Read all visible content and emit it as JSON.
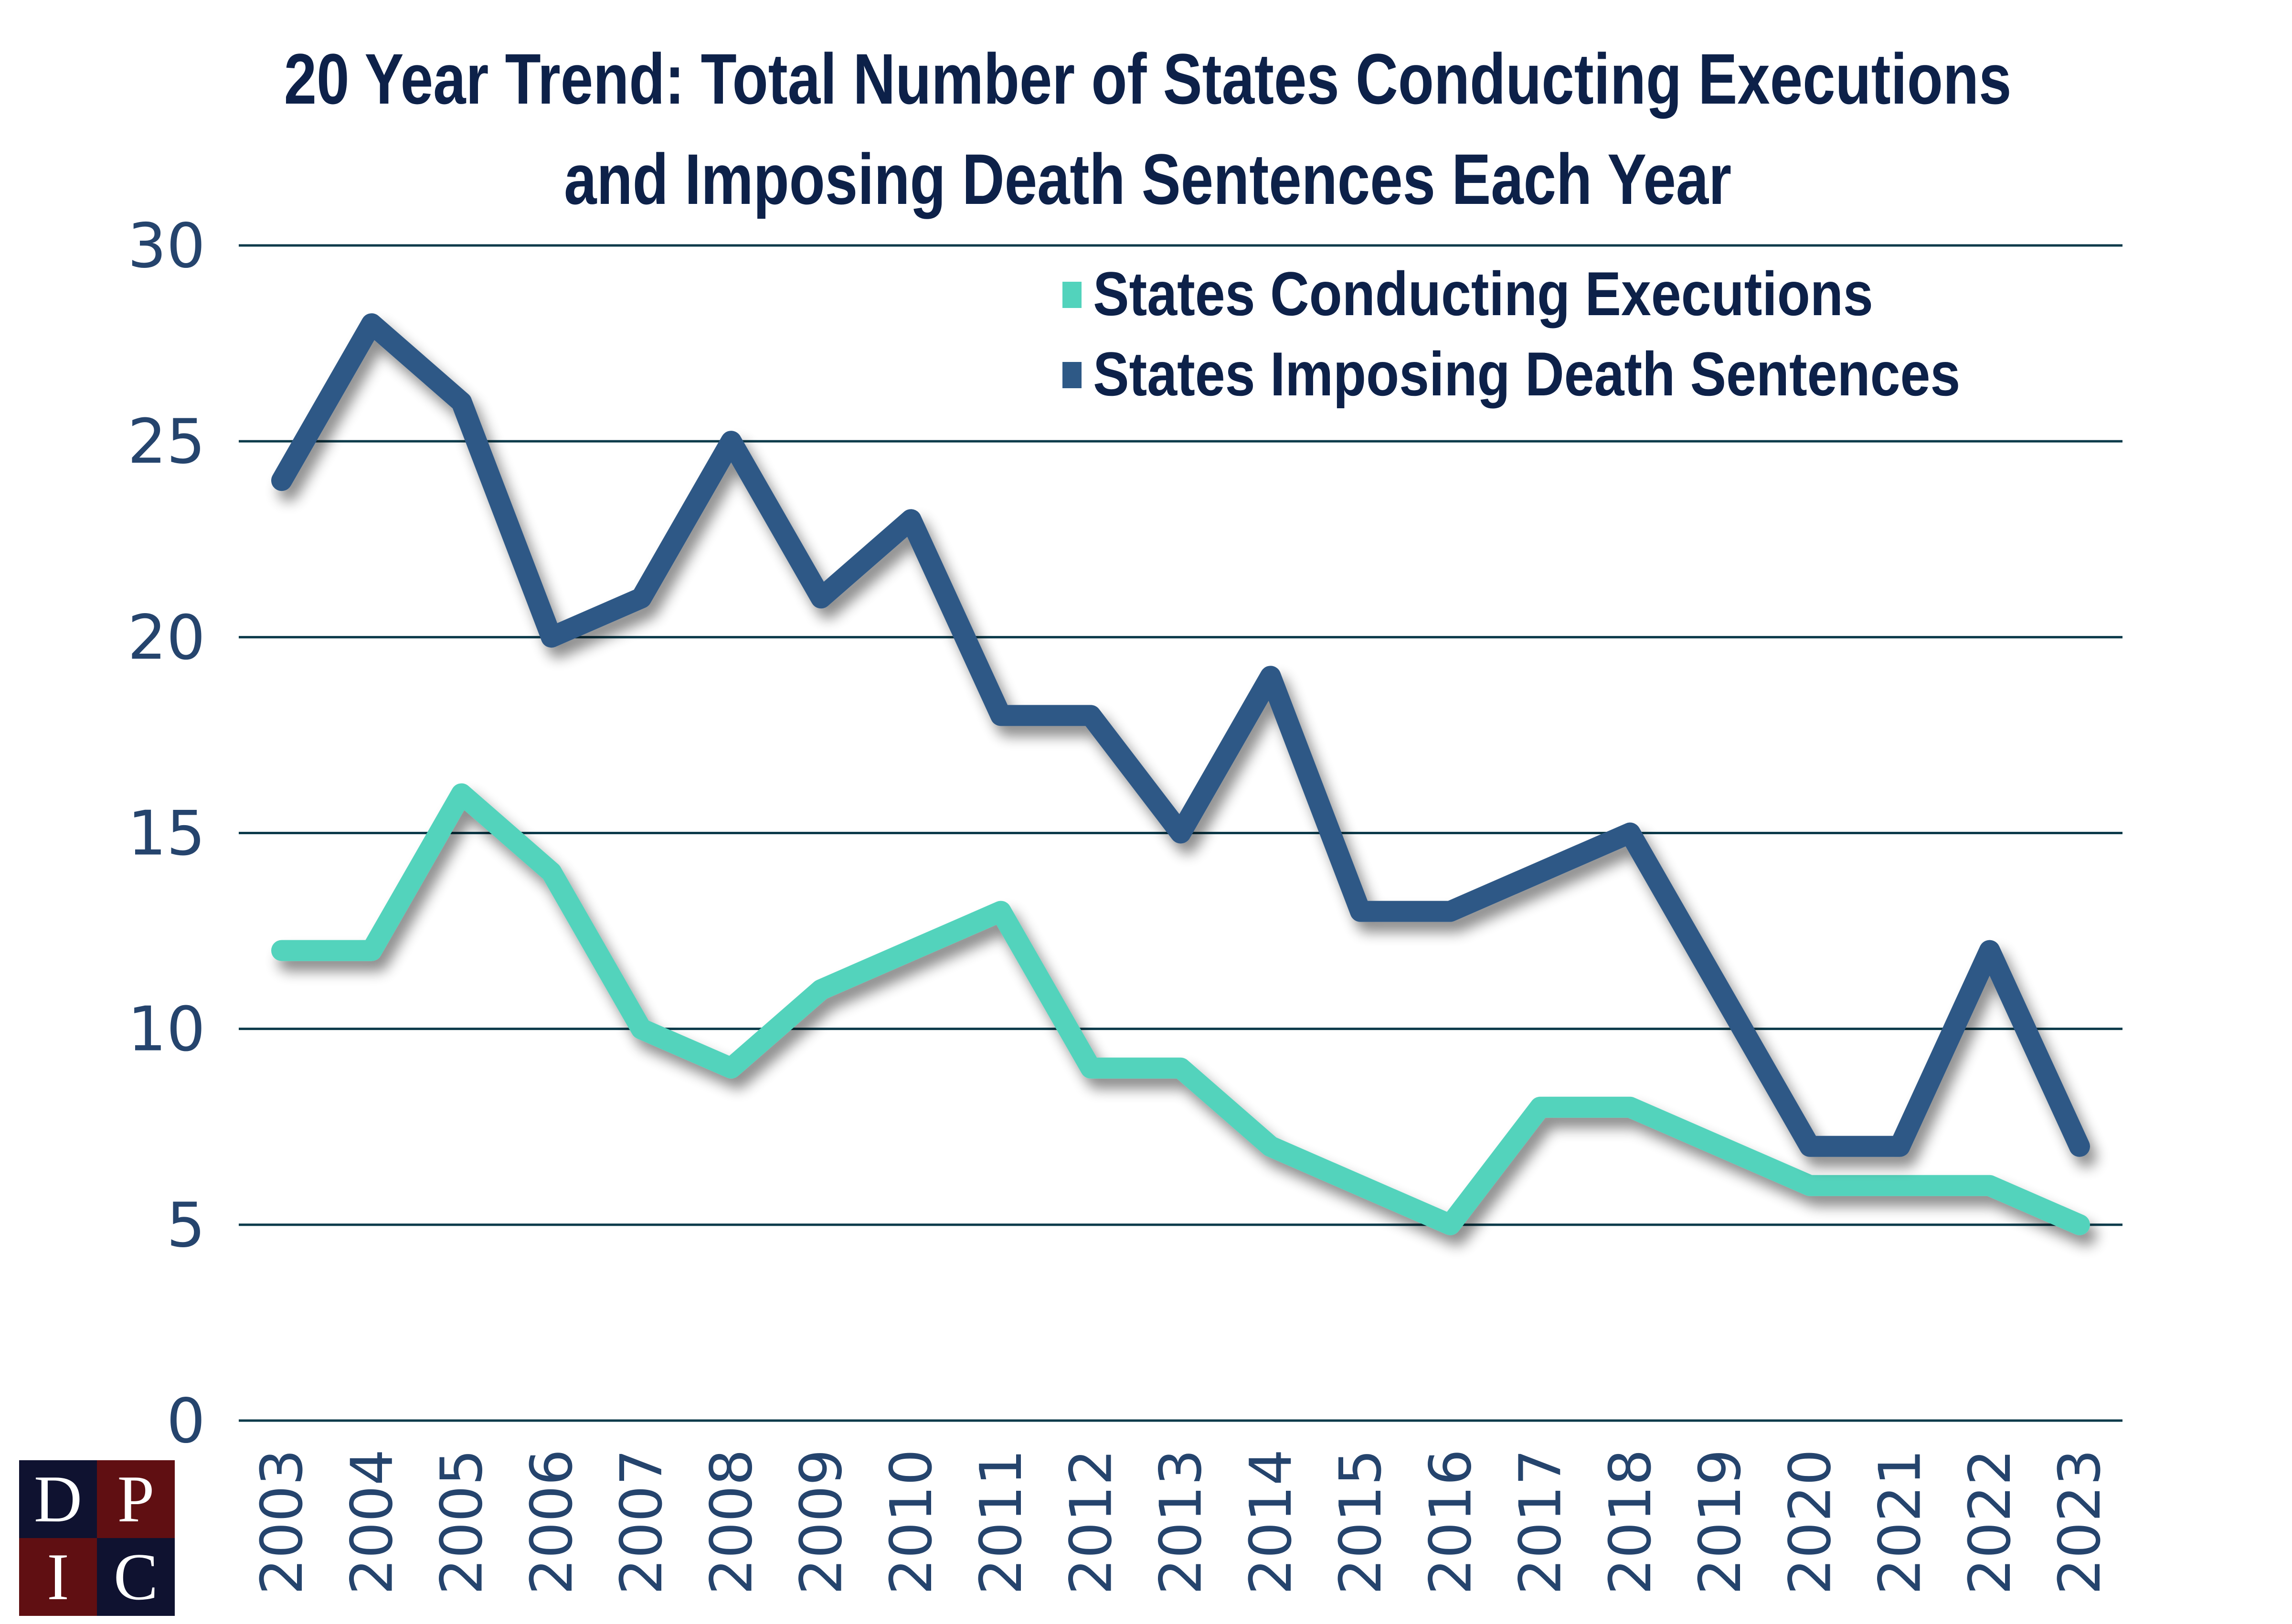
{
  "chart_data": {
    "type": "line",
    "title": "20 Year Trend: Total Number of States Conducting Executions and Imposing Death Sentences Each Year",
    "title_lines": [
      "20 Year Trend: Total Number of States Conducting Executions",
      "and Imposing Death Sentences Each Year"
    ],
    "xlabel": "",
    "ylabel": "",
    "categories": [
      "2003",
      "2004",
      "2005",
      "2006",
      "2007",
      "2008",
      "2009",
      "2010",
      "2011",
      "2012",
      "2013",
      "2014",
      "2015",
      "2016",
      "2017",
      "2018",
      "2019",
      "2020",
      "2021",
      "2022",
      "2023"
    ],
    "series": [
      {
        "name": "States Conducting Executions",
        "color": "#52d3bc",
        "values": [
          12,
          12,
          16,
          14,
          10,
          9,
          11,
          12,
          13,
          9,
          9,
          7,
          6,
          5,
          8,
          8,
          7,
          6,
          6,
          6,
          5
        ]
      },
      {
        "name": "States Imposing Death Sentences",
        "color": "#2e5986",
        "values": [
          24,
          28,
          26,
          20,
          21,
          25,
          21,
          23,
          18,
          18,
          15,
          19,
          13,
          13,
          14,
          15,
          11,
          7,
          7,
          12,
          7
        ]
      }
    ],
    "ylim": [
      0,
      30
    ],
    "yticks": [
      0,
      5,
      10,
      15,
      20,
      25,
      30
    ],
    "grid": true,
    "legend_position": "top-right"
  },
  "logo": {
    "letters": [
      "D",
      "P",
      "I",
      "C"
    ]
  }
}
